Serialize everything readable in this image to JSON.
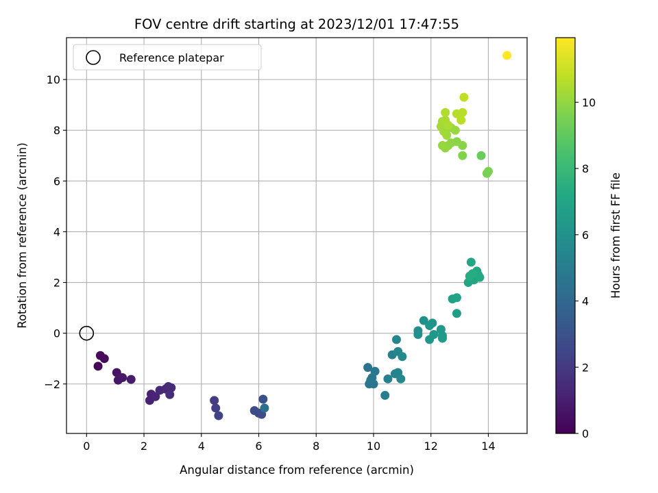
{
  "chart_data": {
    "type": "scatter",
    "title": "FOV centre drift starting at 2023/12/01 17:47:55",
    "xlabel": "Angular distance from reference (arcmin)",
    "ylabel": "Rotation from reference (arcmin)",
    "xlim": [
      -0.7,
      15.35
    ],
    "ylim": [
      -3.95,
      11.65
    ],
    "xticks": [
      0,
      2,
      4,
      6,
      8,
      10,
      12,
      14
    ],
    "yticks": [
      -2,
      0,
      2,
      4,
      6,
      8,
      10
    ],
    "ytick_labels": [
      "−2",
      "0",
      "2",
      "4",
      "6",
      "8",
      "10"
    ],
    "grid": true,
    "legend": {
      "placement": "upper left",
      "entries": [
        {
          "label": "Reference platepar",
          "marker": "hollow-circle",
          "color": "#000000"
        }
      ]
    },
    "reference_point": {
      "x": 0,
      "y": 0,
      "label": "Reference platepar"
    },
    "colorbar": {
      "label": "Hours from first FF file",
      "colormap": "viridis",
      "range": [
        0,
        11.95
      ],
      "ticks": [
        0,
        2,
        4,
        6,
        8,
        10
      ]
    },
    "points": [
      {
        "x": 0.4,
        "y": -1.3,
        "c": 0.1
      },
      {
        "x": 0.48,
        "y": -0.88,
        "c": 0.2
      },
      {
        "x": 0.62,
        "y": -1.0,
        "c": 0.3
      },
      {
        "x": 1.05,
        "y": -1.55,
        "c": 0.6
      },
      {
        "x": 1.1,
        "y": -1.85,
        "c": 0.7
      },
      {
        "x": 1.25,
        "y": -1.75,
        "c": 0.8
      },
      {
        "x": 1.55,
        "y": -1.82,
        "c": 0.9
      },
      {
        "x": 2.2,
        "y": -2.65,
        "c": 1.1
      },
      {
        "x": 2.25,
        "y": -2.4,
        "c": 1.15
      },
      {
        "x": 2.4,
        "y": -2.5,
        "c": 1.2
      },
      {
        "x": 2.55,
        "y": -2.25,
        "c": 1.3
      },
      {
        "x": 2.75,
        "y": -2.2,
        "c": 1.35
      },
      {
        "x": 2.85,
        "y": -2.1,
        "c": 1.4
      },
      {
        "x": 2.95,
        "y": -2.15,
        "c": 1.45
      },
      {
        "x": 2.9,
        "y": -2.42,
        "c": 1.5
      },
      {
        "x": 4.45,
        "y": -2.65,
        "c": 2.1
      },
      {
        "x": 4.5,
        "y": -2.95,
        "c": 2.2
      },
      {
        "x": 4.6,
        "y": -3.25,
        "c": 2.3
      },
      {
        "x": 5.85,
        "y": -3.05,
        "c": 2.7
      },
      {
        "x": 6.0,
        "y": -3.15,
        "c": 2.75
      },
      {
        "x": 6.1,
        "y": -3.2,
        "c": 2.8
      },
      {
        "x": 6.15,
        "y": -2.6,
        "c": 2.9
      },
      {
        "x": 6.2,
        "y": -2.95,
        "c": 4.3
      },
      {
        "x": 9.8,
        "y": -1.35,
        "c": 4.6
      },
      {
        "x": 9.85,
        "y": -2.0,
        "c": 4.65
      },
      {
        "x": 9.95,
        "y": -1.75,
        "c": 4.7
      },
      {
        "x": 10.0,
        "y": -2.0,
        "c": 4.75
      },
      {
        "x": 10.05,
        "y": -1.5,
        "c": 4.8
      },
      {
        "x": 9.9,
        "y": -1.85,
        "c": 4.85
      },
      {
        "x": 10.4,
        "y": -2.45,
        "c": 5.0
      },
      {
        "x": 10.5,
        "y": -1.8,
        "c": 5.1
      },
      {
        "x": 10.65,
        "y": -0.85,
        "c": 5.2
      },
      {
        "x": 10.75,
        "y": -1.6,
        "c": 5.3
      },
      {
        "x": 10.85,
        "y": -1.55,
        "c": 5.35
      },
      {
        "x": 10.8,
        "y": -0.25,
        "c": 5.45
      },
      {
        "x": 10.85,
        "y": -0.72,
        "c": 5.5
      },
      {
        "x": 11.0,
        "y": -0.92,
        "c": 5.55
      },
      {
        "x": 10.95,
        "y": -1.8,
        "c": 5.6
      },
      {
        "x": 11.55,
        "y": 0.1,
        "c": 5.9
      },
      {
        "x": 11.55,
        "y": -0.05,
        "c": 5.95
      },
      {
        "x": 11.75,
        "y": 0.5,
        "c": 6.05
      },
      {
        "x": 11.95,
        "y": 0.3,
        "c": 6.15
      },
      {
        "x": 12.05,
        "y": 0.4,
        "c": 6.2
      },
      {
        "x": 11.95,
        "y": -0.25,
        "c": 6.25
      },
      {
        "x": 12.1,
        "y": -0.05,
        "c": 6.3
      },
      {
        "x": 12.35,
        "y": 0.15,
        "c": 6.35
      },
      {
        "x": 12.4,
        "y": -0.1,
        "c": 6.4
      },
      {
        "x": 12.4,
        "y": -0.2,
        "c": 6.45
      },
      {
        "x": 12.9,
        "y": 0.78,
        "c": 6.6
      },
      {
        "x": 12.75,
        "y": 1.35,
        "c": 6.8
      },
      {
        "x": 12.9,
        "y": 1.4,
        "c": 6.85
      },
      {
        "x": 13.3,
        "y": 2.0,
        "c": 7.0
      },
      {
        "x": 13.4,
        "y": 2.8,
        "c": 7.05
      },
      {
        "x": 13.5,
        "y": 2.1,
        "c": 7.1
      },
      {
        "x": 13.6,
        "y": 2.45,
        "c": 7.15
      },
      {
        "x": 13.65,
        "y": 2.3,
        "c": 7.2
      },
      {
        "x": 13.7,
        "y": 2.2,
        "c": 7.25
      },
      {
        "x": 13.45,
        "y": 2.35,
        "c": 7.3
      },
      {
        "x": 13.35,
        "y": 2.25,
        "c": 7.35
      },
      {
        "x": 13.75,
        "y": 7.0,
        "c": 9.2
      },
      {
        "x": 13.95,
        "y": 6.3,
        "c": 9.5
      },
      {
        "x": 14.0,
        "y": 6.38,
        "c": 9.55
      },
      {
        "x": 13.1,
        "y": 7.0,
        "c": 9.7
      },
      {
        "x": 13.1,
        "y": 7.4,
        "c": 9.8
      },
      {
        "x": 12.9,
        "y": 7.55,
        "c": 9.85
      },
      {
        "x": 12.7,
        "y": 7.5,
        "c": 9.9
      },
      {
        "x": 12.6,
        "y": 7.4,
        "c": 9.95
      },
      {
        "x": 12.5,
        "y": 7.3,
        "c": 10.0
      },
      {
        "x": 12.4,
        "y": 7.4,
        "c": 10.05
      },
      {
        "x": 12.85,
        "y": 8.0,
        "c": 10.1
      },
      {
        "x": 12.7,
        "y": 8.1,
        "c": 10.15
      },
      {
        "x": 12.55,
        "y": 7.8,
        "c": 10.2
      },
      {
        "x": 12.45,
        "y": 7.95,
        "c": 10.25
      },
      {
        "x": 12.35,
        "y": 8.15,
        "c": 10.3
      },
      {
        "x": 12.4,
        "y": 8.35,
        "c": 10.35
      },
      {
        "x": 12.5,
        "y": 8.4,
        "c": 10.4
      },
      {
        "x": 12.6,
        "y": 8.2,
        "c": 10.45
      },
      {
        "x": 12.5,
        "y": 8.7,
        "c": 10.5
      },
      {
        "x": 12.9,
        "y": 8.65,
        "c": 10.6
      },
      {
        "x": 13.1,
        "y": 8.7,
        "c": 10.65
      },
      {
        "x": 13.05,
        "y": 8.4,
        "c": 10.7
      },
      {
        "x": 13.15,
        "y": 9.3,
        "c": 10.8
      },
      {
        "x": 14.65,
        "y": 10.95,
        "c": 11.95
      }
    ]
  }
}
